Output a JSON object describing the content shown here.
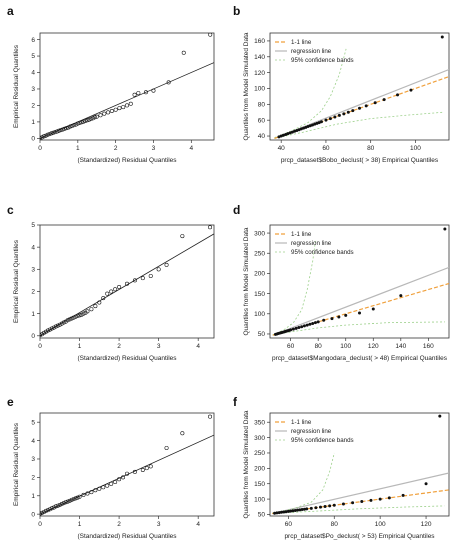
{
  "figure": {
    "panel_labels": [
      "a",
      "b",
      "c",
      "d",
      "e",
      "f"
    ]
  },
  "chart_data": [
    {
      "panel": "a",
      "type": "scatter",
      "xlabel": "(Standardized) Residual Quantiles",
      "ylabel": "Empirical Residual Quantiles",
      "xlim": [
        0,
        4.6
      ],
      "ylim": [
        -0.1,
        6.4
      ],
      "xticks": [
        0,
        1,
        2,
        3,
        4
      ],
      "yticks": [
        0,
        1,
        2,
        3,
        4,
        5,
        6
      ],
      "series": [
        {
          "x": [
            0.0,
            0.05,
            0.1,
            0.15,
            0.2,
            0.25,
            0.3,
            0.35,
            0.4,
            0.45,
            0.5,
            0.55,
            0.6,
            0.65,
            0.7,
            0.75,
            0.8,
            0.85,
            0.9,
            0.95,
            1.0,
            1.05,
            1.1,
            1.15,
            1.2,
            1.25,
            1.3,
            1.35,
            1.4,
            1.45,
            1.5,
            1.6,
            1.7,
            1.8,
            1.9,
            2.0,
            2.1,
            2.2,
            2.3,
            2.4,
            2.5,
            2.6,
            2.8,
            3.0,
            3.4,
            3.8,
            4.5
          ],
          "y": [
            0.02,
            0.06,
            0.12,
            0.16,
            0.22,
            0.26,
            0.3,
            0.34,
            0.38,
            0.42,
            0.46,
            0.5,
            0.54,
            0.58,
            0.62,
            0.66,
            0.72,
            0.76,
            0.8,
            0.84,
            0.9,
            0.94,
            0.98,
            1.02,
            1.06,
            1.1,
            1.14,
            1.18,
            1.22,
            1.28,
            1.32,
            1.4,
            1.5,
            1.58,
            1.66,
            1.74,
            1.84,
            1.9,
            2.0,
            2.1,
            2.65,
            2.75,
            2.8,
            2.9,
            3.4,
            5.2,
            6.3
          ]
        }
      ],
      "fit_line": {
        "x": [
          0,
          4.6
        ],
        "y": [
          0,
          4.6
        ]
      }
    },
    {
      "panel": "b",
      "type": "scatter",
      "xlabel": "prcp_dataset$Bobo_declust( > 38) Empirical Quantiles",
      "ylabel": "Quantiles from Model Simulated Data",
      "xlim": [
        35,
        115
      ],
      "ylim": [
        35,
        170
      ],
      "xticks": [
        40,
        60,
        80,
        100
      ],
      "yticks": [
        40,
        60,
        80,
        100,
        120,
        140,
        160
      ],
      "legend": {
        "position": "top-left",
        "entries": [
          "1-1 line",
          "regression line",
          "95% confidence bands"
        ]
      },
      "series": [
        {
          "x": [
            39,
            40,
            41,
            42,
            43,
            44,
            45,
            46,
            47,
            48,
            49,
            50,
            51,
            52,
            53,
            54,
            55,
            56,
            57,
            58,
            60,
            62,
            64,
            66,
            68,
            70,
            72,
            75,
            78,
            82,
            86,
            92,
            98,
            112
          ],
          "y": [
            39,
            40,
            41,
            42,
            43,
            44,
            45,
            46,
            47,
            48,
            49,
            50,
            51,
            52,
            53,
            54,
            55,
            56,
            57,
            58,
            60,
            62,
            64,
            66,
            68,
            70,
            72,
            75,
            78,
            82,
            86,
            92,
            98,
            165
          ]
        }
      ],
      "one_to_one": {
        "x": [
          37,
          115
        ],
        "y": [
          37,
          115
        ]
      },
      "regression": {
        "x": [
          37,
          115
        ],
        "y": [
          37,
          124
        ]
      },
      "conf_upper": {
        "x": [
          37,
          45,
          52,
          58,
          62,
          66,
          69
        ],
        "y": [
          38,
          47,
          57,
          72,
          90,
          118,
          150
        ]
      },
      "conf_lower": {
        "x": [
          37,
          50,
          65,
          80,
          95,
          112
        ],
        "y": [
          37,
          45,
          55,
          62,
          66,
          70
        ]
      }
    },
    {
      "panel": "c",
      "type": "scatter",
      "xlabel": "(Standardized) Residual Quantiles",
      "ylabel": "Empirical Residual Quantiles",
      "xlim": [
        0,
        4.4
      ],
      "ylim": [
        -0.1,
        5.0
      ],
      "xticks": [
        0,
        1,
        2,
        3,
        4
      ],
      "yticks": [
        0,
        1,
        2,
        3,
        4,
        5
      ],
      "series": [
        {
          "x": [
            0.0,
            0.05,
            0.1,
            0.15,
            0.2,
            0.25,
            0.3,
            0.35,
            0.4,
            0.45,
            0.5,
            0.55,
            0.6,
            0.65,
            0.7,
            0.75,
            0.8,
            0.85,
            0.9,
            0.95,
            1.0,
            1.05,
            1.1,
            1.15,
            1.2,
            1.3,
            1.4,
            1.5,
            1.6,
            1.7,
            1.8,
            1.9,
            2.0,
            2.2,
            2.4,
            2.6,
            2.8,
            3.0,
            3.2,
            3.6,
            4.3
          ],
          "y": [
            0.03,
            0.07,
            0.13,
            0.18,
            0.24,
            0.28,
            0.33,
            0.37,
            0.42,
            0.46,
            0.5,
            0.55,
            0.6,
            0.64,
            0.7,
            0.74,
            0.78,
            0.82,
            0.86,
            0.9,
            0.92,
            0.95,
            1.0,
            1.04,
            1.1,
            1.2,
            1.34,
            1.5,
            1.7,
            1.9,
            2.0,
            2.1,
            2.2,
            2.35,
            2.5,
            2.6,
            2.7,
            3.0,
            3.2,
            4.5,
            4.9
          ]
        }
      ],
      "fit_line": {
        "x": [
          0,
          4.4
        ],
        "y": [
          0,
          4.6
        ]
      }
    },
    {
      "panel": "d",
      "type": "scatter",
      "xlabel": "prcp_dataset$Mangodara_declust( > 48) Empirical Quantiles",
      "ylabel": "Quantiles from Model Simulated Data",
      "xlim": [
        45,
        175
      ],
      "ylim": [
        40,
        320
      ],
      "xticks": [
        60,
        80,
        100,
        120,
        140,
        160
      ],
      "yticks": [
        50,
        100,
        150,
        200,
        250,
        300
      ],
      "legend": {
        "position": "top-left",
        "entries": [
          "1-1 line",
          "regression line",
          "95% confidence bands"
        ]
      },
      "series": [
        {
          "x": [
            49,
            50,
            51,
            52,
            53,
            54,
            55,
            56,
            57,
            58,
            59,
            60,
            62,
            64,
            66,
            68,
            70,
            72,
            74,
            76,
            78,
            80,
            84,
            90,
            95,
            100,
            110,
            120,
            140,
            172
          ],
          "y": [
            49,
            50,
            51,
            52,
            53,
            54,
            55,
            56,
            57,
            58,
            59,
            60,
            62,
            64,
            66,
            68,
            70,
            72,
            74,
            76,
            78,
            80,
            84,
            88,
            92,
            96,
            102,
            112,
            145,
            310
          ]
        }
      ],
      "one_to_one": {
        "x": [
          47,
          175
        ],
        "y": [
          47,
          175
        ]
      },
      "regression": {
        "x": [
          47,
          175
        ],
        "y": [
          47,
          215
        ]
      },
      "conf_upper": {
        "x": [
          47,
          55,
          62,
          68,
          72,
          76,
          78
        ],
        "y": [
          48,
          60,
          78,
          110,
          160,
          230,
          280
        ]
      },
      "conf_lower": {
        "x": [
          47,
          60,
          80,
          100,
          130,
          172
        ],
        "y": [
          47,
          55,
          65,
          72,
          78,
          80
        ]
      }
    },
    {
      "panel": "e",
      "type": "scatter",
      "xlabel": "(Standardized) Residual Quantiles",
      "ylabel": "Empirical Residual Quantiles",
      "xlim": [
        0,
        4.4
      ],
      "ylim": [
        -0.1,
        5.5
      ],
      "xticks": [
        0,
        1,
        2,
        3,
        4
      ],
      "yticks": [
        0,
        1,
        2,
        3,
        4,
        5
      ],
      "series": [
        {
          "x": [
            0.0,
            0.05,
            0.1,
            0.15,
            0.2,
            0.25,
            0.3,
            0.35,
            0.4,
            0.45,
            0.5,
            0.55,
            0.6,
            0.65,
            0.7,
            0.75,
            0.8,
            0.85,
            0.9,
            0.95,
            1.0,
            1.1,
            1.2,
            1.3,
            1.4,
            1.5,
            1.6,
            1.7,
            1.8,
            1.9,
            2.0,
            2.1,
            2.2,
            2.4,
            2.6,
            2.7,
            2.8,
            3.2,
            3.6,
            4.3
          ],
          "y": [
            0.02,
            0.07,
            0.12,
            0.18,
            0.22,
            0.27,
            0.32,
            0.36,
            0.42,
            0.46,
            0.5,
            0.55,
            0.6,
            0.65,
            0.68,
            0.72,
            0.78,
            0.82,
            0.86,
            0.9,
            0.95,
            1.05,
            1.12,
            1.2,
            1.3,
            1.38,
            1.46,
            1.55,
            1.65,
            1.75,
            1.9,
            2.0,
            2.2,
            2.3,
            2.4,
            2.5,
            2.6,
            3.6,
            4.4,
            5.3
          ]
        }
      ],
      "fit_line": {
        "x": [
          0,
          4.4
        ],
        "y": [
          0,
          4.3
        ]
      }
    },
    {
      "panel": "f",
      "type": "scatter",
      "xlabel": "prcp_dataset$Po_declust( > 53) Empirical Quantiles",
      "ylabel": "Quantiles from Model Simulated Data",
      "xlim": [
        52,
        130
      ],
      "ylim": [
        45,
        380
      ],
      "xticks": [
        60,
        80,
        100,
        120
      ],
      "yticks": [
        50,
        100,
        150,
        200,
        250,
        300,
        350
      ],
      "legend": {
        "position": "top-left",
        "entries": [
          "1-1 line",
          "regression line",
          "95% confidence bands"
        ]
      },
      "series": [
        {
          "x": [
            54,
            55,
            56,
            57,
            58,
            59,
            60,
            61,
            62,
            63,
            64,
            65,
            66,
            67,
            68,
            70,
            72,
            74,
            76,
            78,
            80,
            84,
            88,
            92,
            96,
            100,
            104,
            110,
            120,
            126
          ],
          "y": [
            54,
            55,
            56,
            57,
            58,
            59,
            60,
            61,
            62,
            63,
            64,
            65,
            66,
            67,
            68,
            70,
            72,
            74,
            76,
            78,
            80,
            84,
            88,
            92,
            96,
            100,
            104,
            112,
            150,
            370
          ]
        }
      ],
      "one_to_one": {
        "x": [
          53,
          130
        ],
        "y": [
          53,
          130
        ]
      },
      "regression": {
        "x": [
          53,
          130
        ],
        "y": [
          53,
          185
        ]
      },
      "conf_upper": {
        "x": [
          53,
          62,
          70,
          75,
          78,
          80
        ],
        "y": [
          54,
          68,
          90,
          130,
          190,
          250
        ]
      },
      "conf_lower": {
        "x": [
          53,
          70,
          90,
          110,
          128
        ],
        "y": [
          53,
          60,
          68,
          74,
          78
        ]
      }
    }
  ]
}
